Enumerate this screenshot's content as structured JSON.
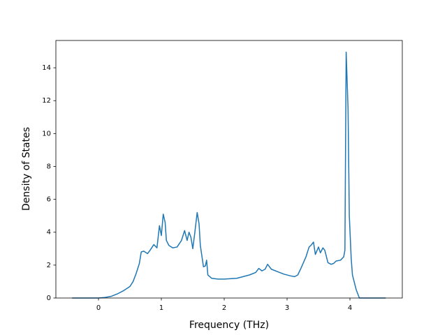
{
  "chart_data": {
    "type": "line",
    "x_label": "Frequency (THz)",
    "y_label": "Density of States",
    "color": "#1f77b4",
    "xlim": [
      -0.678,
      4.833
    ],
    "ylim": [
      0,
      15.66
    ],
    "xticks": [
      0,
      1,
      2,
      3,
      4
    ],
    "yticks": [
      0,
      2,
      4,
      6,
      8,
      10,
      12,
      14
    ],
    "x": [
      -0.42,
      0,
      0.1,
      0.2,
      0.3,
      0.4,
      0.5,
      0.55,
      0.6,
      0.65,
      0.68,
      0.72,
      0.78,
      0.82,
      0.88,
      0.93,
      0.97,
      1.0,
      1.03,
      1.06,
      1.08,
      1.12,
      1.18,
      1.25,
      1.32,
      1.37,
      1.41,
      1.44,
      1.47,
      1.5,
      1.53,
      1.57,
      1.6,
      1.62,
      1.67,
      1.7,
      1.72,
      1.74,
      1.8,
      1.9,
      2.0,
      2.2,
      2.4,
      2.5,
      2.55,
      2.6,
      2.65,
      2.69,
      2.75,
      2.85,
      2.95,
      3.05,
      3.12,
      3.17,
      3.22,
      3.3,
      3.35,
      3.38,
      3.42,
      3.45,
      3.5,
      3.53,
      3.57,
      3.6,
      3.65,
      3.7,
      3.74,
      3.78,
      3.85,
      3.9,
      3.92,
      3.94,
      3.97,
      3.99,
      4.02,
      4.04,
      4.1,
      4.15,
      4.57
    ],
    "values": [
      0,
      0,
      0.03,
      0.1,
      0.25,
      0.45,
      0.7,
      1.0,
      1.5,
      2.1,
      2.8,
      2.85,
      2.7,
      2.9,
      3.25,
      3.05,
      4.4,
      3.8,
      5.1,
      4.6,
      3.5,
      3.2,
      3.05,
      3.1,
      3.5,
      4.1,
      3.5,
      4.0,
      3.7,
      3.0,
      3.9,
      5.2,
      4.5,
      3.2,
      1.9,
      1.95,
      2.3,
      1.4,
      1.2,
      1.15,
      1.15,
      1.2,
      1.4,
      1.55,
      1.8,
      1.65,
      1.75,
      2.05,
      1.75,
      1.6,
      1.45,
      1.35,
      1.3,
      1.4,
      1.8,
      2.5,
      3.1,
      3.2,
      3.4,
      2.65,
      3.1,
      2.75,
      3.05,
      2.9,
      2.15,
      2.05,
      2.1,
      2.25,
      2.3,
      2.5,
      2.9,
      14.95,
      11.5,
      5,
      2.4,
      1.4,
      0.5,
      0,
      0
    ]
  }
}
